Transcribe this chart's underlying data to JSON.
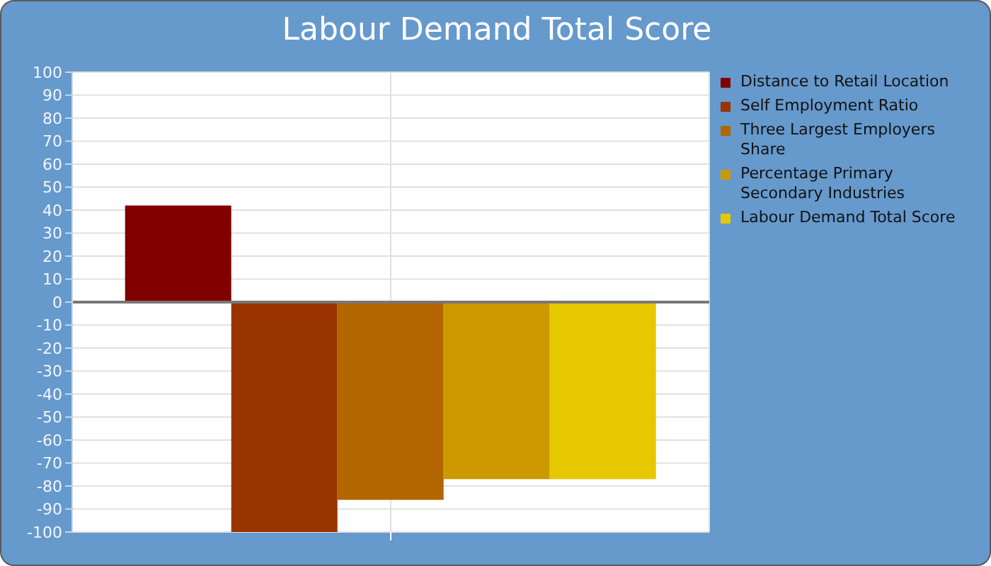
{
  "chart_data": {
    "type": "bar",
    "title": "Labour Demand Total Score",
    "categories": [
      null
    ],
    "series": [
      {
        "name": "Distance to Retail Location",
        "color": "#800000",
        "values": [
          42
        ]
      },
      {
        "name": "Self Employment Ratio",
        "color": "#993300",
        "values": [
          -100
        ]
      },
      {
        "name": "Three Largest Employers Share",
        "color": "#b36600",
        "values": [
          -86
        ]
      },
      {
        "name": "Percentage Primary Secondary Industries",
        "color": "#cc9900",
        "values": [
          -77
        ]
      },
      {
        "name": "Labour Demand Total Score",
        "color": "#e6c800",
        "values": [
          -77
        ]
      }
    ],
    "ylim": [
      -100,
      100
    ],
    "yticks": [
      -100,
      -90,
      -80,
      -70,
      -60,
      -50,
      -40,
      -30,
      -20,
      -10,
      0,
      10,
      20,
      30,
      40,
      50,
      60,
      70,
      80,
      90,
      100
    ],
    "grid": true,
    "legend": "top right"
  }
}
